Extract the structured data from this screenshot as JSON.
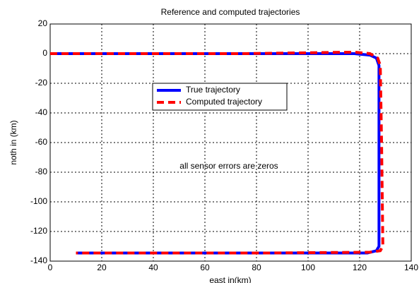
{
  "chart_data": {
    "type": "line",
    "title": "Reference and computed trajectories",
    "xlabel": "east in(km)",
    "ylabel": "noth in (km)",
    "annotation": "all sensor errors are zeros",
    "xlim": [
      0,
      140
    ],
    "ylim": [
      -140,
      20
    ],
    "xticks": [
      0,
      20,
      40,
      60,
      80,
      100,
      120,
      140
    ],
    "yticks": [
      20,
      0,
      -20,
      -40,
      -60,
      -80,
      -100,
      -120,
      -140
    ],
    "grid": true,
    "series": [
      {
        "name": "True trajectory",
        "color": "#0000ff",
        "dashed": false,
        "x": [
          0,
          118,
          124,
          126.5,
          127.5,
          127.5,
          126.5,
          123,
          10
        ],
        "values": [
          0,
          0,
          -1,
          -3,
          -8,
          -130,
          -133,
          -134.5,
          -134.5
        ]
      },
      {
        "name": "Computed trajectory",
        "color": "#ff0000",
        "dashed": true,
        "x": [
          0,
          75,
          118,
          124,
          127,
          128,
          128.5,
          129,
          128,
          124,
          85,
          10
        ],
        "values": [
          0,
          0,
          1,
          0,
          -3,
          -8,
          -60,
          -130,
          -133,
          -134,
          -134.5,
          -134.5
        ]
      }
    ]
  }
}
